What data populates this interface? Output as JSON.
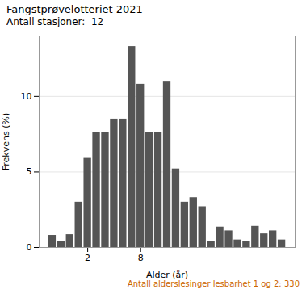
{
  "chart_data": {
    "type": "bar",
    "title": "Fangstprøvelotteriet 2021",
    "subtitle": "Antall stasjoner:  12",
    "footnote": "Antall alderslesinger lesbarhet 1 og 2: 330",
    "xlabel": "Alder (år)",
    "ylabel": "Frekvens (%)",
    "x": [
      -2,
      -1,
      0,
      1,
      2,
      3,
      4,
      5,
      6,
      7,
      8,
      9,
      10,
      11,
      12,
      13,
      14,
      15,
      16,
      17,
      18,
      19,
      20,
      21,
      22,
      23,
      24
    ],
    "values": [
      0.8,
      0.4,
      0.85,
      3.0,
      5.9,
      7.6,
      7.6,
      8.5,
      8.5,
      13.3,
      10.8,
      7.6,
      7.6,
      11.0,
      5.2,
      3.0,
      3.3,
      2.7,
      0.4,
      1.35,
      1.1,
      0.5,
      0.4,
      1.4,
      0.9,
      1.1,
      0.5
    ],
    "color": "#555555",
    "xlim": [
      -3.5,
      25.5
    ],
    "xticks": [
      2,
      8
    ],
    "ylim": [
      0,
      14
    ],
    "yticks": [
      0,
      5,
      10
    ],
    "grid": true
  }
}
